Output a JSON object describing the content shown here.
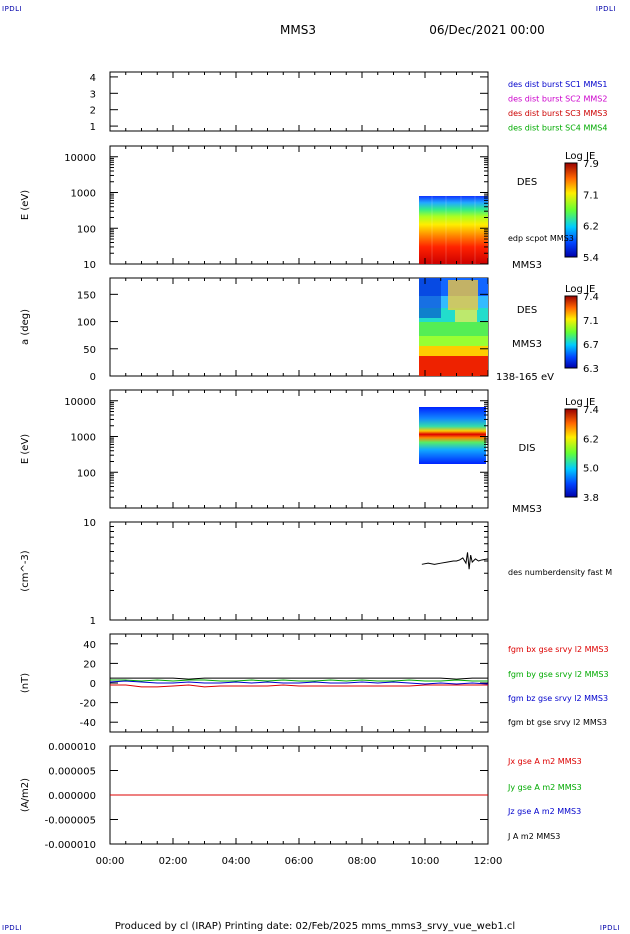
{
  "header": {
    "corner_tl": "IPDLI",
    "corner_tr": "IPDLI",
    "corner_bl": "IPDLI",
    "corner_br": "IPDLI",
    "title": "MMS3",
    "date": "06/Dec/2021 00:00"
  },
  "footer": {
    "credit": "Produced by cl (IRAP)   Printing date: 02/Feb/2025   mms_mms3_srvy_vue_web1.cl"
  },
  "time_axis": {
    "ticks": [
      "00:00",
      "02:00",
      "04:00",
      "06:00",
      "08:00",
      "10:00",
      "12:00"
    ],
    "range_hours": [
      0,
      12
    ]
  },
  "colors": {
    "mms1": "#0000cc",
    "mms2": "#cc00cc",
    "mms3": "#cc0000",
    "mms4": "#00aa00",
    "bx": "#dd0000",
    "by": "#00aa00",
    "bz": "#0000cc",
    "bt": "#000000"
  },
  "chart_data": [
    {
      "type": "line",
      "id": "p1",
      "ylabel": "",
      "yticks": [
        "1",
        "2",
        "3",
        "4"
      ],
      "ylim": [
        0.7,
        4.3
      ],
      "legend": [
        {
          "text": "des dist burst SC1 MMS1",
          "color": "#0000cc"
        },
        {
          "text": "des dist burst SC2 MMS2",
          "color": "#cc00cc"
        },
        {
          "text": "des dist burst SC3 MMS3",
          "color": "#cc0000"
        },
        {
          "text": "des dist burst SC4 MMS4",
          "color": "#00aa00"
        }
      ]
    },
    {
      "type": "heatmap",
      "id": "p2",
      "ylabel": "E (eV)",
      "yscale": "log",
      "ylim": [
        10,
        20000
      ],
      "yticks": [
        "10",
        "100",
        "1000",
        "10000"
      ],
      "data_x_range": [
        9.8,
        12
      ],
      "data_y_range": [
        10,
        1000
      ],
      "species": "DES",
      "sub_label": "edp scpot MMS3",
      "below_label": "MMS3",
      "colorbar": {
        "title": "Log JE",
        "ticks": [
          "7.9",
          "7.1",
          "6.2",
          "5.4"
        ]
      }
    },
    {
      "type": "heatmap",
      "id": "p3",
      "ylabel": "a (deg)",
      "ylim": [
        0,
        180
      ],
      "yticks": [
        "0",
        "50",
        "100",
        "150"
      ],
      "data_x_range": [
        9.8,
        12
      ],
      "species": "DES",
      "sub_label": "MMS3",
      "below_label": "138-165 eV",
      "colorbar": {
        "title": "Log JE",
        "ticks": [
          "7.4",
          "7.1",
          "6.7",
          "6.3"
        ]
      }
    },
    {
      "type": "heatmap",
      "id": "p4",
      "ylabel": "E (eV)",
      "yscale": "log",
      "ylim": [
        10,
        20000
      ],
      "yticks": [
        "100",
        "1000",
        "10000"
      ],
      "data_x_range": [
        9.8,
        11.9
      ],
      "data_y_range": [
        200,
        10000
      ],
      "species": "DIS",
      "below_label": "MMS3",
      "colorbar": {
        "title": "Log JE",
        "ticks": [
          "7.4",
          "6.2",
          "5.0",
          "3.8"
        ]
      }
    },
    {
      "type": "line",
      "id": "p5",
      "ylabel": "(cm^-3)",
      "yscale": "log",
      "ylim": [
        1,
        10
      ],
      "yticks": [
        "1",
        "10"
      ],
      "series": [
        {
          "name": "des numberdensity fast M",
          "color": "#000000",
          "x": [
            9.9,
            10.1,
            10.3,
            10.5,
            10.7,
            10.9,
            11.0,
            11.1,
            11.2,
            11.3,
            11.35,
            11.4,
            11.45,
            11.5,
            11.6,
            11.7,
            11.8,
            12.0
          ],
          "y": [
            3.7,
            3.8,
            3.7,
            3.8,
            3.9,
            4.0,
            4.0,
            4.1,
            4.3,
            3.8,
            4.9,
            3.3,
            4.6,
            3.9,
            4.2,
            4.0,
            4.1,
            4.2
          ]
        }
      ]
    },
    {
      "type": "line",
      "id": "p6",
      "ylabel": "(nT)",
      "ylim": [
        -50,
        50
      ],
      "yticks": [
        "-40",
        "-20",
        "0",
        "20",
        "40"
      ],
      "series": [
        {
          "name": "fgm bx gse srvy l2 MMS3",
          "color": "#dd0000",
          "x": [
            0,
            0.5,
            1,
            1.5,
            2,
            2.5,
            3,
            3.5,
            4,
            4.5,
            5,
            5.5,
            6,
            6.5,
            7,
            7.5,
            8,
            8.5,
            9,
            9.5,
            10,
            10.5,
            11,
            11.5,
            12
          ],
          "y": [
            -2,
            -2,
            -4,
            -4,
            -3,
            -2,
            -4,
            -3,
            -3,
            -3,
            -3,
            -2,
            -3,
            -3,
            -3,
            -3,
            -3,
            -3,
            -3,
            -3,
            -2,
            -2,
            -2,
            -2,
            -2
          ]
        },
        {
          "name": "fgm by gse srvy l2 MMS3",
          "color": "#00aa00",
          "x": [
            0,
            0.5,
            1,
            1.5,
            2,
            2.5,
            3,
            3.5,
            4,
            4.5,
            5,
            5.5,
            6,
            6.5,
            7,
            7.5,
            8,
            8.5,
            9,
            9.5,
            10,
            10.5,
            11,
            11.5,
            12
          ],
          "y": [
            3,
            3,
            2,
            3,
            2,
            3,
            3,
            2,
            2,
            3,
            2,
            3,
            2,
            2,
            3,
            2,
            3,
            2,
            2,
            3,
            2,
            2,
            3,
            2,
            2
          ]
        },
        {
          "name": "fgm bz gse srvy l2 MMS3",
          "color": "#0000cc",
          "x": [
            0,
            0.5,
            1,
            1.5,
            2,
            2.5,
            3,
            3.5,
            4,
            4.5,
            5,
            5.5,
            6,
            6.5,
            7,
            7.5,
            8,
            8.5,
            9,
            9.5,
            10,
            10.5,
            11,
            11.5,
            12
          ],
          "y": [
            1,
            2,
            1,
            0,
            0,
            1,
            0,
            0,
            1,
            0,
            1,
            0,
            0,
            1,
            0,
            0,
            1,
            0,
            1,
            0,
            -1,
            0,
            -1,
            0,
            -1
          ]
        },
        {
          "name": "fgm bt gse srvy l2 MMS3",
          "color": "#000000",
          "x": [
            0,
            0.5,
            1,
            1.5,
            2,
            2.5,
            3,
            3.5,
            4,
            4.5,
            5,
            5.5,
            6,
            6.5,
            7,
            7.5,
            8,
            8.5,
            9,
            9.5,
            10,
            10.5,
            11,
            11.5,
            12
          ],
          "y": [
            5,
            5,
            5,
            5,
            5,
            4,
            5,
            5,
            5,
            5,
            5,
            5,
            5,
            5,
            5,
            5,
            5,
            5,
            5,
            5,
            5,
            5,
            4,
            5,
            5
          ]
        }
      ]
    },
    {
      "type": "line",
      "id": "p7",
      "ylabel": "(A/m2)",
      "ylim": [
        -1e-05,
        1e-05
      ],
      "yticks": [
        "-0.000010",
        "-0.000005",
        "0.000000",
        "0.000005",
        "0.000010"
      ],
      "series": [
        {
          "name": "Jx gse A m2 MMS3",
          "color": "#dd0000",
          "x": [
            0,
            12
          ],
          "y": [
            0,
            0
          ]
        },
        {
          "name": "Jy gse A m2 MMS3",
          "color": "#00aa00",
          "x": [
            0,
            12
          ],
          "y": [
            0,
            0
          ]
        },
        {
          "name": "Jz gse A m2 MMS3",
          "color": "#0000cc",
          "x": [
            0,
            12
          ],
          "y": [
            0,
            0
          ]
        },
        {
          "name": "J A m2 MMS3",
          "color": "#000000",
          "x": [
            0,
            12
          ],
          "y": [
            0,
            0
          ]
        }
      ]
    }
  ]
}
